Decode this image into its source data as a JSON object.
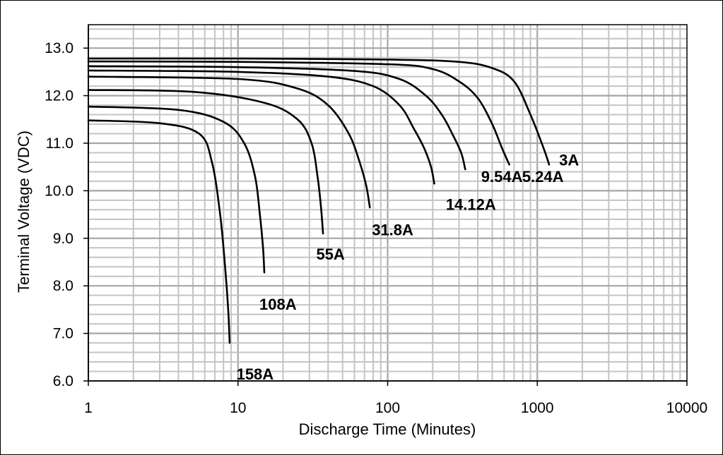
{
  "chart_data": {
    "type": "line",
    "title": "",
    "xlabel": "Discharge Time (Minutes)",
    "ylabel": "Terminal Voltage (VDC)",
    "x_scale": "log",
    "xlim": [
      1,
      10000
    ],
    "ylim": [
      6.0,
      13.5
    ],
    "grid": true,
    "legend": "none",
    "x_ticks": [
      "1",
      "10",
      "100",
      "1000",
      "10000"
    ],
    "y_ticks": [
      "6.0",
      "7.0",
      "8.0",
      "9.0",
      "10.0",
      "11.0",
      "12.0",
      "13.0"
    ],
    "series": [
      {
        "name": "3A",
        "label": "3A",
        "x": [
          1,
          10,
          100,
          300,
          500,
          700,
          900,
          1100,
          1200
        ],
        "y": [
          12.78,
          12.78,
          12.76,
          12.71,
          12.58,
          12.3,
          11.6,
          10.9,
          10.55
        ]
      },
      {
        "name": "5.24A",
        "label": "5.24A",
        "x": [
          1,
          10,
          100,
          200,
          300,
          400,
          500,
          580,
          650
        ],
        "y": [
          12.72,
          12.71,
          12.66,
          12.56,
          12.3,
          11.95,
          11.4,
          10.9,
          10.55
        ]
      },
      {
        "name": "9.54A",
        "label": "9.54A",
        "x": [
          1,
          10,
          60,
          120,
          180,
          230,
          270,
          310,
          330
        ],
        "y": [
          12.62,
          12.6,
          12.52,
          12.35,
          12.0,
          11.6,
          11.2,
          10.8,
          10.45
        ]
      },
      {
        "name": "14.12A",
        "label": "14.12A",
        "x": [
          1,
          10,
          40,
          80,
          120,
          150,
          175,
          195,
          205
        ],
        "y": [
          12.53,
          12.5,
          12.4,
          12.2,
          11.8,
          11.3,
          10.9,
          10.5,
          10.15
        ]
      },
      {
        "name": "31.8A",
        "label": "31.8A",
        "x": [
          1,
          10,
          25,
          40,
          55,
          65,
          72,
          76
        ],
        "y": [
          12.4,
          12.35,
          12.15,
          11.8,
          11.2,
          10.6,
          10.1,
          9.65
        ]
      },
      {
        "name": "55A",
        "label": "55A",
        "x": [
          1,
          5,
          15,
          25,
          31,
          34,
          36,
          37
        ],
        "y": [
          12.12,
          12.08,
          11.85,
          11.5,
          11.0,
          10.3,
          9.6,
          9.1
        ]
      },
      {
        "name": "108A",
        "label": "108A",
        "x": [
          1,
          4,
          8,
          11,
          13,
          14,
          14.7,
          15
        ],
        "y": [
          11.77,
          11.7,
          11.45,
          11.0,
          10.3,
          9.5,
          8.8,
          8.28
        ]
      },
      {
        "name": "158A",
        "label": "158A",
        "x": [
          1,
          3,
          5.5,
          6.7,
          7.6,
          8.2,
          8.6,
          8.8
        ],
        "y": [
          11.48,
          11.42,
          11.2,
          10.6,
          9.5,
          8.4,
          7.5,
          6.8
        ]
      }
    ],
    "labels": [
      {
        "series": "3A",
        "x": 1630,
        "y": 10.65
      },
      {
        "series": "5.24A",
        "x": 1090,
        "y": 10.3
      },
      {
        "series": "9.54A",
        "x": 580,
        "y": 10.3
      },
      {
        "series": "14.12A",
        "x": 360,
        "y": 9.72
      },
      {
        "series": "31.8A",
        "x": 108,
        "y": 9.18
      },
      {
        "series": "55A",
        "x": 41.5,
        "y": 8.67
      },
      {
        "series": "108A",
        "x": 18.5,
        "y": 7.62
      },
      {
        "series": "158A",
        "x": 13,
        "y": 6.15
      }
    ]
  }
}
